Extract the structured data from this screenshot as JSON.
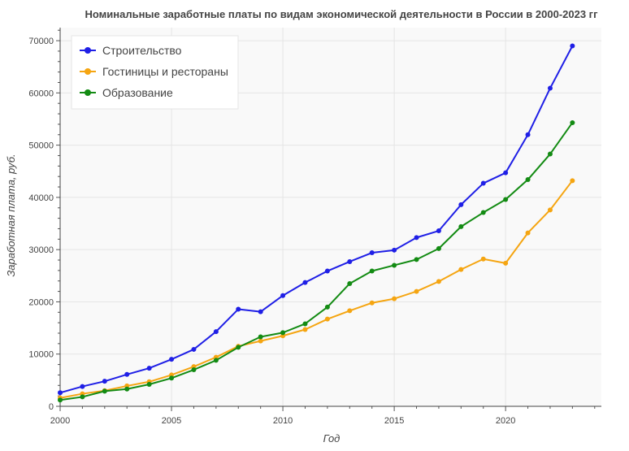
{
  "chart_data": {
    "type": "line",
    "title": "Номинальные заработные платы по видам экономической деятельности в России в 2000-2023 гг",
    "xlabel": "Год",
    "ylabel": "Заработная плата, руб.",
    "xlim": [
      2000,
      2024.3
    ],
    "ylim": [
      0,
      72500
    ],
    "x_ticks": [
      2000,
      2005,
      2010,
      2015,
      2020
    ],
    "y_ticks": [
      0,
      10000,
      20000,
      30000,
      40000,
      50000,
      60000,
      70000
    ],
    "grid": true,
    "legend_position": "top-left",
    "x": [
      2000,
      2001,
      2002,
      2003,
      2004,
      2005,
      2006,
      2007,
      2008,
      2009,
      2010,
      2011,
      2012,
      2013,
      2014,
      2015,
      2016,
      2017,
      2018,
      2019,
      2020,
      2021,
      2022,
      2023
    ],
    "series": [
      {
        "name": "Строительство",
        "color": "#1f1fe6",
        "values": [
          2600,
          3800,
          4800,
          6100,
          7300,
          9000,
          10900,
          14300,
          18600,
          18100,
          21200,
          23700,
          25900,
          27700,
          29400,
          29900,
          32300,
          33600,
          38600,
          42700,
          44700,
          52000,
          60900,
          69000
        ]
      },
      {
        "name": "Гостиницы и рестораны",
        "color": "#f5a511",
        "values": [
          1600,
          2400,
          3000,
          3900,
          4700,
          6000,
          7600,
          9400,
          11500,
          12500,
          13500,
          14700,
          16700,
          18300,
          19800,
          20600,
          22000,
          23900,
          26200,
          28200,
          27400,
          33200,
          37600,
          43200
        ]
      },
      {
        "name": "Образование",
        "color": "#138b13",
        "values": [
          1200,
          1800,
          2900,
          3300,
          4200,
          5400,
          7000,
          8800,
          11300,
          13300,
          14100,
          15800,
          19000,
          23500,
          25900,
          27000,
          28100,
          30200,
          34400,
          37100,
          39600,
          43400,
          48300,
          54300
        ]
      }
    ]
  }
}
